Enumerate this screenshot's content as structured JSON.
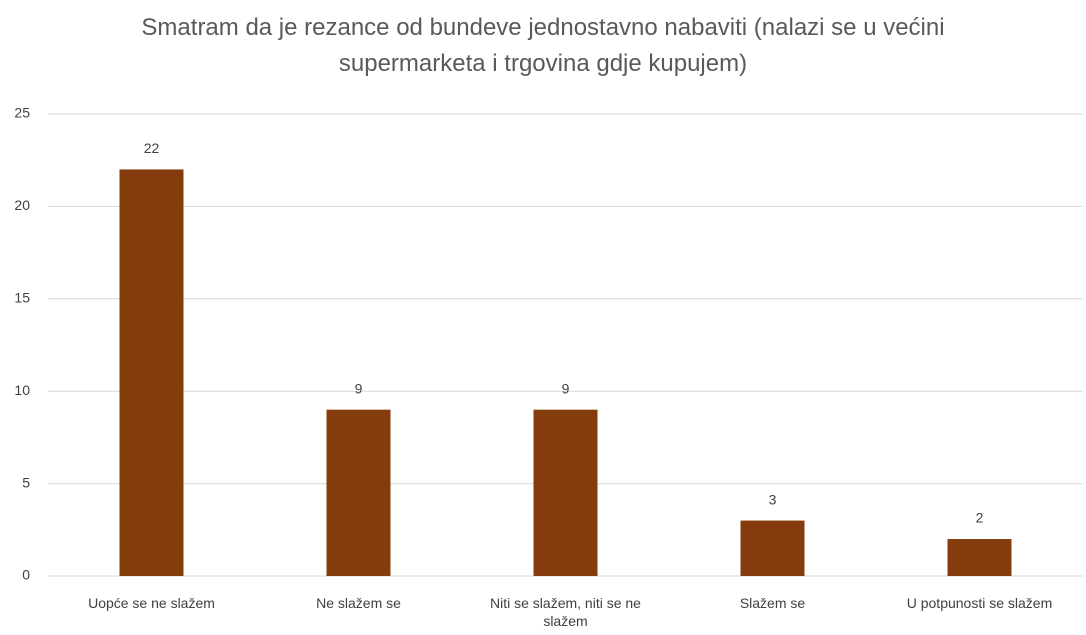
{
  "chart_data": {
    "type": "bar",
    "title": "Smatram da je rezance od bundeve jednostavno nabaviti (nalazi se u većini supermarketa i trgovina gdje kupujem)",
    "categories": [
      "Uopće se ne slažem",
      "Ne slažem se",
      "Niti se slažem, niti se ne slažem",
      "Slažem se",
      "U potpunosti se slažem"
    ],
    "values": [
      22,
      9,
      9,
      3,
      2
    ],
    "color": "#843c0c",
    "ylim": [
      0,
      25
    ],
    "yticks": [
      0,
      5,
      10,
      15,
      20,
      25
    ],
    "grid": true
  }
}
